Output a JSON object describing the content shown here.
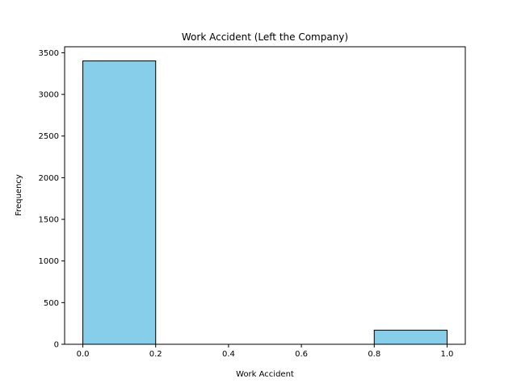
{
  "chart_data": {
    "type": "bar",
    "title": "Work Accident (Left the Company)",
    "xlabel": "Work Accident",
    "ylabel": "Frequency",
    "bins": [
      {
        "start": 0.0,
        "end": 0.2,
        "value": 3402
      },
      {
        "start": 0.2,
        "end": 0.4,
        "value": 0
      },
      {
        "start": 0.4,
        "end": 0.6,
        "value": 0
      },
      {
        "start": 0.6,
        "end": 0.8,
        "value": 0
      },
      {
        "start": 0.8,
        "end": 1.0,
        "value": 169
      }
    ],
    "xlim": [
      -0.05,
      1.05
    ],
    "ylim": [
      0,
      3572
    ],
    "xticks": [
      0.0,
      0.2,
      0.4,
      0.6,
      0.8,
      1.0
    ],
    "xtick_labels": [
      "0.0",
      "0.2",
      "0.4",
      "0.6",
      "0.8",
      "1.0"
    ],
    "yticks": [
      0,
      500,
      1000,
      1500,
      2000,
      2500,
      3000,
      3500
    ],
    "ytick_labels": [
      "0",
      "500",
      "1000",
      "1500",
      "2000",
      "2500",
      "3000",
      "3500"
    ],
    "grid": false,
    "colors": {
      "bar_fill": "#87CEEB",
      "bar_edge": "#000000"
    }
  }
}
